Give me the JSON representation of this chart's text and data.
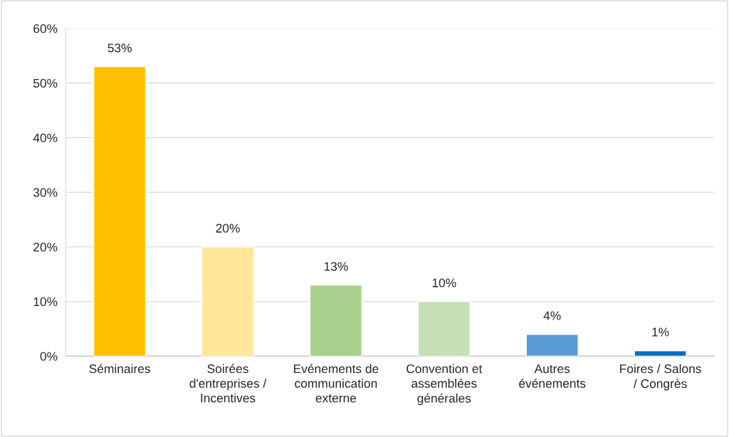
{
  "chart_data": {
    "type": "bar",
    "categories": [
      "Séminaires",
      "Soirées\nd'entreprises /\nIncentives",
      "Evénements de\ncommunication\nexterne",
      "Convention et\nassemblées\ngénérales",
      "Autres\névénements",
      "Foires / Salons\n/ Congrès"
    ],
    "values": [
      53,
      20,
      13,
      10,
      4,
      1
    ],
    "colors": [
      "#ffc000",
      "#ffe699",
      "#a9d18e",
      "#c5e0b4",
      "#5b9bd5",
      "#0070c0"
    ],
    "value_labels": [
      "53%",
      "20%",
      "13%",
      "10%",
      "4%",
      "1%"
    ],
    "ylim": [
      0,
      60
    ],
    "yticks": [
      {
        "value": 0,
        "label": "0%"
      },
      {
        "value": 10,
        "label": "10%"
      },
      {
        "value": 20,
        "label": "20%"
      },
      {
        "value": 30,
        "label": "30%"
      },
      {
        "value": 40,
        "label": "40%"
      },
      {
        "value": 50,
        "label": "50%"
      },
      {
        "value": 60,
        "label": "60%"
      }
    ],
    "grid": "y"
  }
}
